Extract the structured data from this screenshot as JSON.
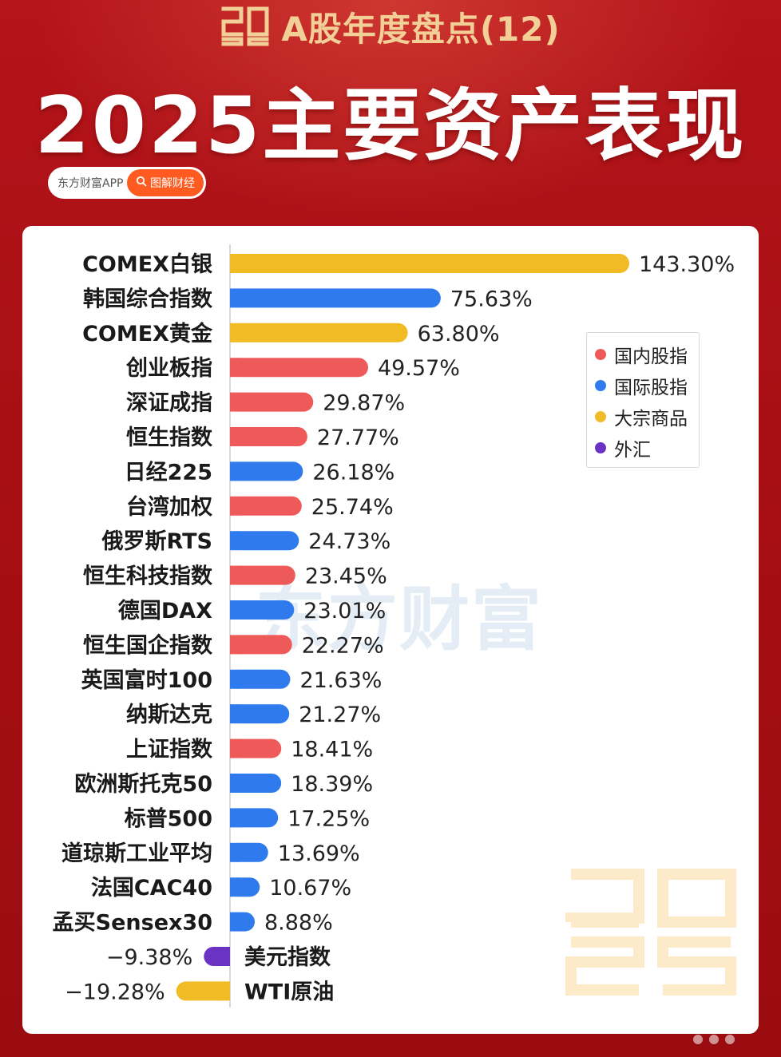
{
  "header": {
    "series_title": "A股年度盘点(12)",
    "main_title": "2025主要资产表现",
    "logo_text": "2025"
  },
  "source": {
    "app": "东方财富APP",
    "tag": "图解财经",
    "tag_icon": "search-icon"
  },
  "watermark": "东方财富",
  "colors": {
    "domestic": "#ee5a5a",
    "international": "#2f7bee",
    "commodity": "#f1bb26",
    "fx": "#6a33c4",
    "background": "#a80f14"
  },
  "legend": [
    {
      "label": "国内股指",
      "color": "#ee5a5a"
    },
    {
      "label": "国际股指",
      "color": "#2f7bee"
    },
    {
      "label": "大宗商品",
      "color": "#f1bb26"
    },
    {
      "label": "外汇",
      "color": "#6a33c4"
    }
  ],
  "chart_data": {
    "type": "bar",
    "orientation": "horizontal",
    "unit": "%",
    "legend_position": "right",
    "items": [
      {
        "name": "COMEX白银",
        "value": 143.3,
        "label": "143.30%",
        "category": "大宗商品"
      },
      {
        "name": "韩国综合指数",
        "value": 75.63,
        "label": "75.63%",
        "category": "国际股指"
      },
      {
        "name": "COMEX黄金",
        "value": 63.8,
        "label": "63.80%",
        "category": "大宗商品"
      },
      {
        "name": "创业板指",
        "value": 49.57,
        "label": "49.57%",
        "category": "国内股指"
      },
      {
        "name": "深证成指",
        "value": 29.87,
        "label": "29.87%",
        "category": "国内股指"
      },
      {
        "name": "恒生指数",
        "value": 27.77,
        "label": "27.77%",
        "category": "国内股指"
      },
      {
        "name": "日经225",
        "value": 26.18,
        "label": "26.18%",
        "category": "国际股指"
      },
      {
        "name": "台湾加权",
        "value": 25.74,
        "label": "25.74%",
        "category": "国内股指"
      },
      {
        "name": "俄罗斯RTS",
        "value": 24.73,
        "label": "24.73%",
        "category": "国际股指"
      },
      {
        "name": "恒生科技指数",
        "value": 23.45,
        "label": "23.45%",
        "category": "国内股指"
      },
      {
        "name": "德国DAX",
        "value": 23.01,
        "label": "23.01%",
        "category": "国际股指"
      },
      {
        "name": "恒生国企指数",
        "value": 22.27,
        "label": "22.27%",
        "category": "国内股指"
      },
      {
        "name": "英国富时100",
        "value": 21.63,
        "label": "21.63%",
        "category": "国际股指"
      },
      {
        "name": "纳斯达克",
        "value": 21.27,
        "label": "21.27%",
        "category": "国际股指"
      },
      {
        "name": "上证指数",
        "value": 18.41,
        "label": "18.41%",
        "category": "国内股指"
      },
      {
        "name": "欧洲斯托克50",
        "value": 18.39,
        "label": "18.39%",
        "category": "国际股指"
      },
      {
        "name": "标普500",
        "value": 17.25,
        "label": "17.25%",
        "category": "国际股指"
      },
      {
        "name": "道琼斯工业平均",
        "value": 13.69,
        "label": "13.69%",
        "category": "国际股指"
      },
      {
        "name": "法国CAC40",
        "value": 10.67,
        "label": "10.67%",
        "category": "国际股指"
      },
      {
        "name": "孟买Sensex30",
        "value": 8.88,
        "label": "8.88%",
        "category": "国际股指"
      },
      {
        "name": "美元指数",
        "value": -9.38,
        "label": "−9.38%",
        "category": "外汇"
      },
      {
        "name": "WTI原油",
        "value": -19.28,
        "label": "−19.28%",
        "category": "大宗商品"
      }
    ]
  }
}
